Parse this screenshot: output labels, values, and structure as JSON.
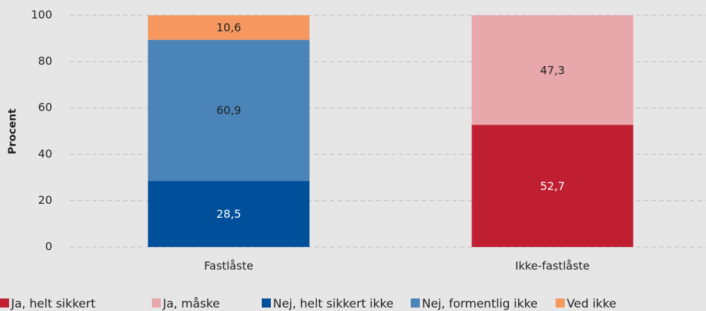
{
  "chart_data": {
    "type": "stacked_bar",
    "y_label": "Procent",
    "categories": [
      "Fastlåste",
      "Ikke-fastlåste"
    ],
    "series": [
      {
        "name": "Ja, helt sikkert",
        "color": "#c01f32",
        "values": [
          null,
          52.7
        ],
        "value_labels": [
          null,
          "52,7"
        ]
      },
      {
        "name": "Ja, måske",
        "color": "#e8a7ab",
        "values": [
          null,
          47.3
        ],
        "value_labels": [
          null,
          "47,3"
        ]
      },
      {
        "name": "Nej, helt sikkert ikke",
        "color": "#004f9a",
        "values": [
          28.5,
          null
        ],
        "value_labels": [
          "28,5",
          null
        ]
      },
      {
        "name": "Nej, formentlig ikke",
        "color": "#4a84b8",
        "values": [
          60.9,
          null
        ],
        "value_labels": [
          "60,9",
          null
        ]
      },
      {
        "name": "Ved ikke",
        "color": "#f5975e",
        "values": [
          10.6,
          null
        ],
        "value_labels": [
          "10,6",
          null
        ]
      }
    ],
    "ylim": [
      0,
      100
    ],
    "yticks": [
      0,
      20,
      40,
      60,
      80,
      100
    ],
    "grid": true,
    "legend": "bottom"
  }
}
